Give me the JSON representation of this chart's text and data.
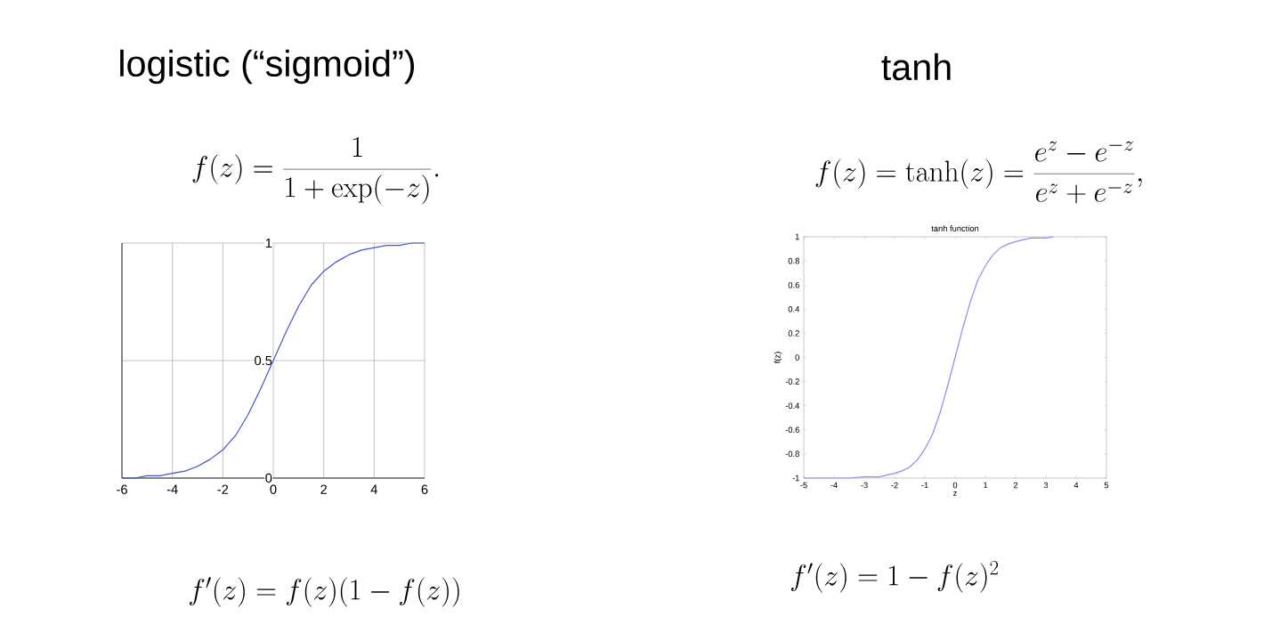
{
  "chart_data": [
    {
      "type": "line",
      "title": "logistic (“sigmoid”)",
      "annotations": [
        "f(z) = \\frac{1}{1+\\exp(-z)}.",
        "f'(z) = f(z)(1-f(z))"
      ],
      "x": [
        -6,
        -5.5,
        -5,
        -4.5,
        -4,
        -3.5,
        -3,
        -2.5,
        -2,
        -1.5,
        -1,
        -0.5,
        0,
        0.5,
        1,
        1.5,
        2,
        2.5,
        3,
        3.5,
        4,
        4.5,
        5,
        5.5,
        6
      ],
      "series": [
        {
          "color": "#4455cc",
          "values": [
            0.0,
            0.0,
            0.01,
            0.01,
            0.02,
            0.03,
            0.05,
            0.08,
            0.12,
            0.18,
            0.27,
            0.38,
            0.5,
            0.62,
            0.73,
            0.82,
            0.88,
            0.92,
            0.95,
            0.97,
            0.98,
            0.99,
            0.99,
            1.0,
            1.0
          ]
        }
      ],
      "xlim": [
        -6,
        6
      ],
      "ylim": [
        0,
        1
      ],
      "xticks": [
        -6,
        -4,
        -2,
        0,
        2,
        4,
        6
      ],
      "yticks": [
        0,
        0.5,
        1
      ],
      "grid": true
    },
    {
      "type": "line",
      "title": "tanh",
      "subtitle": "tanh function",
      "xlabel": "z",
      "ylabel": "f(z)",
      "annotations": [
        "f(z) = \\tanh(z) = \\frac{e^z - e^{-z}}{e^z + e^{-z}},",
        "f'(z) = 1 - f(z)^2"
      ],
      "x": [
        -5,
        -4.5,
        -4,
        -3.5,
        -3,
        -2.5,
        -2,
        -1.75,
        -1.5,
        -1.25,
        -1,
        -0.75,
        -0.5,
        -0.25,
        0,
        0.25,
        0.5,
        0.75,
        1,
        1.25,
        1.5,
        1.75,
        2,
        2.5,
        3,
        3.25
      ],
      "series": [
        {
          "color": "#8c8cf5",
          "values": [
            -1.0,
            -1.0,
            -1.0,
            -1.0,
            -0.99,
            -0.99,
            -0.96,
            -0.94,
            -0.91,
            -0.85,
            -0.76,
            -0.64,
            -0.46,
            -0.24,
            0,
            0.24,
            0.46,
            0.64,
            0.76,
            0.85,
            0.91,
            0.94,
            0.96,
            0.99,
            0.99,
            1.0
          ]
        }
      ],
      "xlim": [
        -5,
        5
      ],
      "ylim": [
        -1,
        1
      ],
      "xticks": [
        -5,
        -4,
        -3,
        -2,
        -1,
        0,
        1,
        2,
        3,
        4,
        5
      ],
      "yticks": [
        -1,
        -0.8,
        -0.6,
        -0.4,
        -0.2,
        0,
        0.2,
        0.4,
        0.6,
        0.8,
        1
      ],
      "grid": false
    }
  ]
}
